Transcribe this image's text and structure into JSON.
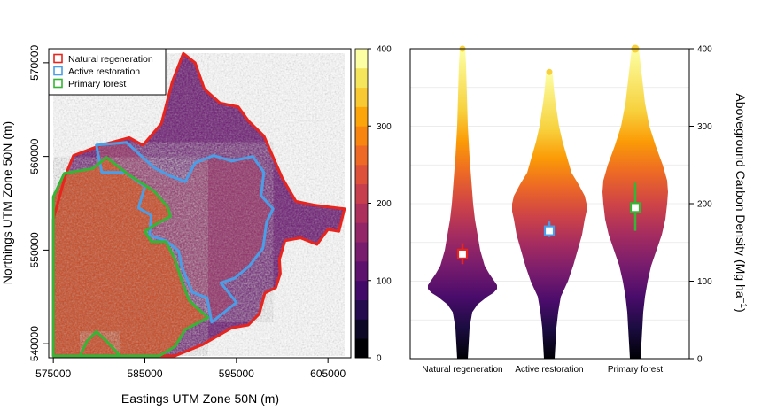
{
  "chart_data": [
    {
      "type": "heatmap",
      "description_kind": "map",
      "xlabel": "Eastings UTM Zone 50N (m)",
      "ylabel": "Northings UTM Zone 50N (m)",
      "x_ticks": [
        "575000",
        "585000",
        "595000",
        "605000"
      ],
      "y_ticks": [
        "540000",
        "550000",
        "560000",
        "570000"
      ],
      "xlim": [
        574500,
        607500
      ],
      "ylim": [
        538500,
        571500
      ],
      "legend": {
        "placement": "top-left",
        "entries": [
          {
            "label": "Natural regeneration",
            "color": "#e8241d"
          },
          {
            "label": "Active restoration",
            "color": "#4a9ee8"
          },
          {
            "label": "Primary forest",
            "color": "#35b535"
          }
        ]
      },
      "colorbar": {
        "ticks": [
          "0",
          "100",
          "200",
          "300",
          "400"
        ],
        "range": [
          0,
          400
        ],
        "colors": [
          "#000004",
          "#0c0826",
          "#240c4f",
          "#420a68",
          "#5d126e",
          "#781c6d",
          "#932667",
          "#ad305c",
          "#c73e4c",
          "#dd513a",
          "#ed6925",
          "#f8850f",
          "#fca50a",
          "#f8c932",
          "#f5e55d",
          "#fcffa4"
        ]
      },
      "regions": [
        {
          "name": "Natural regeneration",
          "color": "#e8241d",
          "polygon": [
            [
              577200,
              560100
            ],
            [
              580200,
              561200
            ],
            [
              583300,
              562000
            ],
            [
              584800,
              561200
            ],
            [
              586800,
              563500
            ],
            [
              588000,
              568000
            ],
            [
              589200,
              571000
            ],
            [
              590500,
              570000
            ],
            [
              591500,
              567200
            ],
            [
              593200,
              565700
            ],
            [
              595200,
              565300
            ],
            [
              596300,
              563800
            ],
            [
              598000,
              562200
            ],
            [
              600000,
              557700
            ],
            [
              601500,
              555200
            ],
            [
              603500,
              554800
            ],
            [
              606800,
              554400
            ],
            [
              606200,
              552000
            ],
            [
              605000,
              552200
            ],
            [
              603800,
              550600
            ],
            [
              602000,
              551300
            ],
            [
              600300,
              551000
            ],
            [
              599700,
              549000
            ],
            [
              599800,
              547500
            ],
            [
              599300,
              546000
            ],
            [
              598100,
              545400
            ],
            [
              597500,
              543200
            ],
            [
              596300,
              542000
            ],
            [
              594500,
              541700
            ],
            [
              591300,
              539900
            ],
            [
              588300,
              538700
            ],
            [
              582800,
              538700
            ],
            [
              575000,
              538700
            ],
            [
              575000,
              553300
            ],
            [
              576300,
              557900
            ],
            [
              577200,
              560100
            ]
          ]
        },
        {
          "name": "Active restoration",
          "color": "#4a9ee8",
          "polygon": [
            [
              579700,
              561200
            ],
            [
              583000,
              561500
            ],
            [
              586000,
              558800
            ],
            [
              587800,
              557900
            ],
            [
              589400,
              557300
            ],
            [
              590500,
              559300
            ],
            [
              592500,
              560100
            ],
            [
              594500,
              559500
            ],
            [
              596800,
              560000
            ],
            [
              598000,
              558300
            ],
            [
              597700,
              555800
            ],
            [
              599000,
              554400
            ],
            [
              598300,
              553000
            ],
            [
              597900,
              550200
            ],
            [
              596400,
              548300
            ],
            [
              594800,
              547000
            ],
            [
              593300,
              546500
            ],
            [
              595000,
              544400
            ],
            [
              592300,
              542300
            ],
            [
              591800,
              544900
            ],
            [
              590200,
              545500
            ],
            [
              589000,
              548300
            ],
            [
              588700,
              549900
            ],
            [
              587300,
              551000
            ],
            [
              585500,
              551600
            ],
            [
              585700,
              553700
            ],
            [
              584300,
              554500
            ],
            [
              585000,
              556800
            ],
            [
              582800,
              558300
            ],
            [
              580300,
              558300
            ],
            [
              579700,
              561200
            ]
          ]
        },
        {
          "name": "Primary forest",
          "color": "#35b535",
          "polygon": [
            [
              575000,
              555700
            ],
            [
              576200,
              558200
            ],
            [
              579300,
              558700
            ],
            [
              580800,
              559900
            ],
            [
              583300,
              558000
            ],
            [
              586000,
              556300
            ],
            [
              587500,
              554600
            ],
            [
              587800,
              553600
            ],
            [
              586100,
              552700
            ],
            [
              585000,
              552000
            ],
            [
              585700,
              550900
            ],
            [
              587300,
              550900
            ],
            [
              588300,
              549000
            ],
            [
              589000,
              546800
            ],
            [
              589800,
              544700
            ],
            [
              590600,
              543900
            ],
            [
              591900,
              542800
            ],
            [
              589400,
              541500
            ],
            [
              588300,
              539700
            ],
            [
              586600,
              538700
            ],
            [
              575000,
              538700
            ],
            [
              575000,
              555700
            ]
          ]
        },
        {
          "name": "Primary forest",
          "color": "#35b535",
          "polygon": [
            [
              577900,
              538700
            ],
            [
              578700,
              540300
            ],
            [
              579700,
              541300
            ],
            [
              580900,
              540200
            ],
            [
              582300,
              538700
            ],
            [
              577900,
              538700
            ]
          ]
        }
      ]
    },
    {
      "type": "violin",
      "ylabel": "Aboveground Carbon Density (Mg ha",
      "ylabel_sup": "−1",
      "ylabel_close": ")",
      "categories": [
        "Natural regeneration",
        "Active restoration",
        "Primary forest"
      ],
      "y_ticks": [
        "0",
        "100",
        "200",
        "300",
        "400"
      ],
      "ylim": [
        0,
        400
      ],
      "grid": true,
      "series": [
        {
          "name": "Natural regeneration",
          "color": "#e8241d",
          "mean": 135,
          "ci": [
            122,
            149
          ],
          "profile": [
            [
              0,
              6
            ],
            [
              20,
              7
            ],
            [
              40,
              8
            ],
            [
              60,
              11
            ],
            [
              70,
              17
            ],
            [
              80,
              28
            ],
            [
              85,
              35
            ],
            [
              90,
              39
            ],
            [
              95,
              39
            ],
            [
              100,
              36
            ],
            [
              110,
              30
            ],
            [
              120,
              25
            ],
            [
              140,
              20
            ],
            [
              160,
              17
            ],
            [
              180,
              14
            ],
            [
              200,
              12
            ],
            [
              230,
              10
            ],
            [
              260,
              8
            ],
            [
              300,
              6
            ],
            [
              340,
              5
            ],
            [
              380,
              4
            ],
            [
              400,
              3
            ]
          ]
        },
        {
          "name": "Active restoration",
          "color": "#4a9ee8",
          "mean": 165,
          "ci": [
            157,
            177
          ],
          "profile": [
            [
              0,
              6
            ],
            [
              20,
              7
            ],
            [
              40,
              8
            ],
            [
              60,
              10
            ],
            [
              80,
              13
            ],
            [
              100,
              21
            ],
            [
              120,
              27
            ],
            [
              140,
              32
            ],
            [
              160,
              37
            ],
            [
              180,
              40
            ],
            [
              190,
              42
            ],
            [
              200,
              42
            ],
            [
              210,
              40
            ],
            [
              225,
              33
            ],
            [
              240,
              25
            ],
            [
              260,
              20
            ],
            [
              280,
              15
            ],
            [
              300,
              11
            ],
            [
              330,
              7
            ],
            [
              350,
              5
            ],
            [
              365,
              4
            ],
            [
              370,
              3
            ]
          ]
        },
        {
          "name": "Primary forest",
          "color": "#35b535",
          "mean": 195,
          "ci": [
            165,
            227
          ],
          "profile": [
            [
              0,
              6
            ],
            [
              20,
              7
            ],
            [
              40,
              8
            ],
            [
              60,
              9
            ],
            [
              80,
              11
            ],
            [
              100,
              14
            ],
            [
              120,
              18
            ],
            [
              140,
              24
            ],
            [
              160,
              30
            ],
            [
              180,
              34
            ],
            [
              200,
              36
            ],
            [
              215,
              37
            ],
            [
              230,
              36
            ],
            [
              250,
              31
            ],
            [
              275,
              23
            ],
            [
              300,
              16
            ],
            [
              330,
              11
            ],
            [
              360,
              8
            ],
            [
              390,
              5
            ],
            [
              400,
              4
            ]
          ]
        }
      ]
    }
  ]
}
